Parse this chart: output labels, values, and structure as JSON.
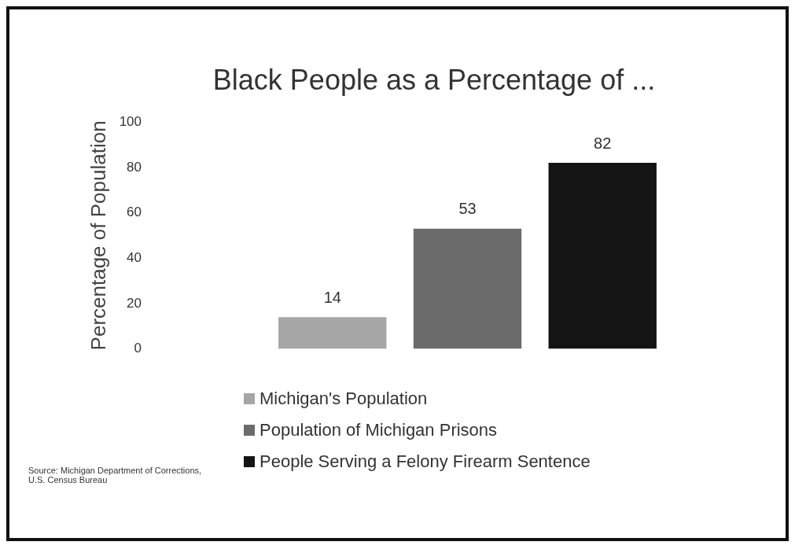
{
  "chart_data": {
    "type": "bar",
    "title": "Black People as a Percentage of ...",
    "ylabel": "Percentage of Population",
    "categories": [
      null
    ],
    "series": [
      {
        "name": "Michigan's Population",
        "color": "#a6a6a6",
        "values": [
          14
        ]
      },
      {
        "name": "Population of Michigan Prisons",
        "color": "#6b6b6b",
        "values": [
          53
        ]
      },
      {
        "name": "People Serving a Felony Firearm Sentence",
        "color": "#141414",
        "values": [
          82
        ]
      }
    ],
    "ylim": [
      0,
      100
    ],
    "yticks": [
      0,
      20,
      40,
      60,
      80,
      100
    ],
    "grid": false,
    "data_labels": true,
    "legend": "bottom",
    "annotations": [
      "Source: Michigan Department of Corrections,\nU.S. Census Bureau"
    ]
  }
}
